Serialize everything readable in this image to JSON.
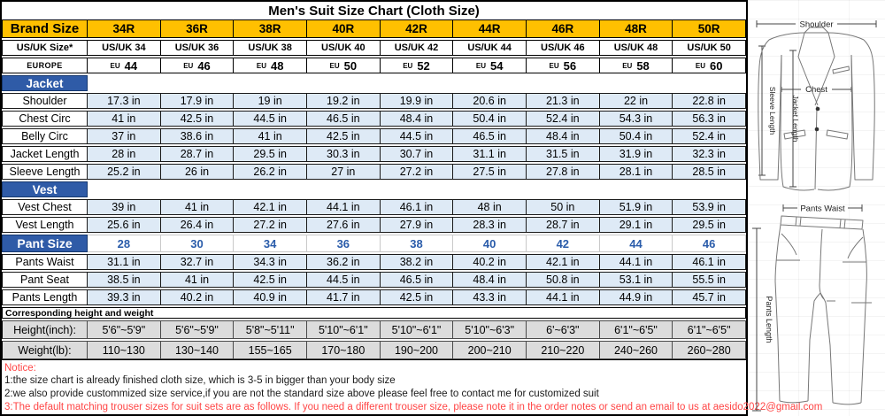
{
  "title": "Men's Suit Size Chart (Cloth Size)",
  "colors": {
    "header_gold": "#FFC000",
    "section_blue": "#2F5BA7",
    "cell_light_blue": "#DEEAF6",
    "row_gray": "#DCDCDC",
    "notice_red": "#FF4545",
    "pant_size_value_blue": "#2A5CAA"
  },
  "table": {
    "rows": [
      {
        "kind": "gold",
        "label": "Brand Size",
        "cells": [
          "34R",
          "36R",
          "38R",
          "40R",
          "42R",
          "44R",
          "46R",
          "48R",
          "50R"
        ]
      },
      {
        "kind": "usuk",
        "label": "US/UK Size*",
        "cells": [
          "US/UK 34",
          "US/UK 36",
          "US/UK 38",
          "US/UK 40",
          "US/UK 42",
          "US/UK 44",
          "US/UK 46",
          "US/UK 48",
          "US/UK 50"
        ]
      },
      {
        "kind": "europe",
        "label": "EUROPE",
        "prefix": "EU",
        "cells": [
          "44",
          "46",
          "48",
          "50",
          "52",
          "54",
          "56",
          "58",
          "60"
        ]
      },
      {
        "kind": "section",
        "label": "Jacket"
      },
      {
        "kind": "data",
        "label": "Shoulder",
        "cells": [
          "17.3 in",
          "17.9 in",
          "19 in",
          "19.2 in",
          "19.9 in",
          "20.6 in",
          "21.3 in",
          "22 in",
          "22.8 in"
        ]
      },
      {
        "kind": "data",
        "label": "Chest Circ",
        "cells": [
          "41 in",
          "42.5 in",
          "44.5 in",
          "46.5 in",
          "48.4 in",
          "50.4 in",
          "52.4 in",
          "54.3 in",
          "56.3 in"
        ]
      },
      {
        "kind": "data",
        "label": "Belly Circ",
        "cells": [
          "37 in",
          "38.6 in",
          "41 in",
          "42.5 in",
          "44.5 in",
          "46.5 in",
          "48.4 in",
          "50.4 in",
          "52.4 in"
        ]
      },
      {
        "kind": "data",
        "label": "Jacket Length",
        "cells": [
          "28 in",
          "28.7 in",
          "29.5 in",
          "30.3 in",
          "30.7 in",
          "31.1 in",
          "31.5 in",
          "31.9 in",
          "32.3 in"
        ]
      },
      {
        "kind": "data",
        "label": "Sleeve Length",
        "cells": [
          "25.2 in",
          "26 in",
          "26.2 in",
          "27 in",
          "27.2 in",
          "27.5 in",
          "27.8 in",
          "28.1 in",
          "28.5 in"
        ]
      },
      {
        "kind": "section",
        "label": "Vest"
      },
      {
        "kind": "data",
        "label": "Vest Chest",
        "cells": [
          "39 in",
          "41 in",
          "42.1 in",
          "44.1 in",
          "46.1 in",
          "48 in",
          "50 in",
          "51.9 in",
          "53.9 in"
        ]
      },
      {
        "kind": "data",
        "label": "Vest Length",
        "cells": [
          "25.6 in",
          "26.4 in",
          "27.2 in",
          "27.6 in",
          "27.9 in",
          "28.3 in",
          "28.7 in",
          "29.1 in",
          "29.5 in"
        ]
      },
      {
        "kind": "pantsize",
        "label": "Pant Size",
        "cells": [
          "28",
          "30",
          "34",
          "36",
          "38",
          "40",
          "42",
          "44",
          "46"
        ]
      },
      {
        "kind": "data",
        "label": "Pants Waist",
        "cells": [
          "31.1 in",
          "32.7 in",
          "34.3 in",
          "36.2 in",
          "38.2 in",
          "40.2 in",
          "42.1 in",
          "44.1 in",
          "46.1 in"
        ]
      },
      {
        "kind": "data",
        "label": "Pant Seat",
        "cells": [
          "38.5 in",
          "41 in",
          "42.5 in",
          "44.5 in",
          "46.5 in",
          "48.4 in",
          "50.8 in",
          "53.1 in",
          "55.5 in"
        ]
      },
      {
        "kind": "data",
        "label": "Pants Length",
        "cells": [
          "39.3 in",
          "40.2 in",
          "40.9 in",
          "41.7 in",
          "42.5 in",
          "43.3 in",
          "44.1 in",
          "44.9 in",
          "45.7 in"
        ]
      },
      {
        "kind": "subheader",
        "label": "Corresponding height and weight"
      },
      {
        "kind": "gray",
        "label": "Height(inch):",
        "cells": [
          "5'6\"~5'9\"",
          "5'6\"~5'9\"",
          "5'8\"~5'11\"",
          "5'10\"~6'1\"",
          "5'10\"~6'1\"",
          "5'10\"~6'3\"",
          "6'~6'3\"",
          "6'1\"~6'5\"",
          "6'1\"~6'5\""
        ]
      },
      {
        "kind": "gray",
        "label": "Weight(lb):",
        "cells": [
          "110~130",
          "130~140",
          "155~165",
          "170~180",
          "190~200",
          "200~210",
          "210~220",
          "240~260",
          "260~280"
        ]
      }
    ]
  },
  "notice": {
    "heading": "Notice:",
    "lines": [
      "1:the size chart is already finished cloth size, which is 3-5 in bigger than your body size",
      "2:we also provide custommized size service,if you are not the standard size above please feel free to contact me for customized suit",
      "3:The default matching trouser sizes for suit sets are as follows. If you need a different trouser size, please note it in the order notes or send an email to us at aesido2022@gmail.com"
    ]
  },
  "diagram": {
    "shoulder": "Shoulder",
    "chest": "Chest",
    "jacket_length": "Jacket Length",
    "sleeve_length": "Sleeve Length",
    "pants_waist": "Pants Waist",
    "pants_length": "Pants Length"
  }
}
